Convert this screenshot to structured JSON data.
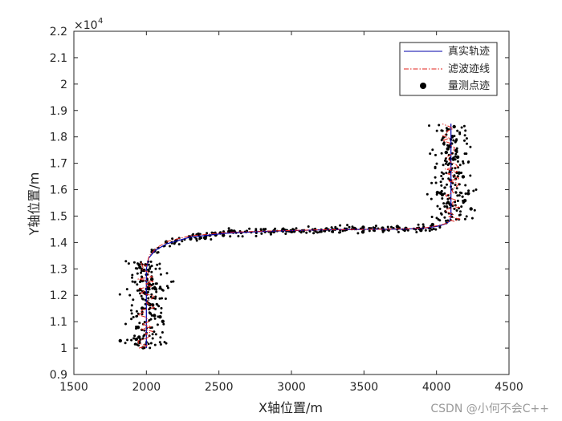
{
  "chart_data": {
    "type": "line",
    "xlabel": "X轴位置/m",
    "ylabel": "Y轴位置/m",
    "xlim": [
      1500,
      4500
    ],
    "ylim": [
      9000,
      22000
    ],
    "xticks": [
      1500,
      2000,
      2500,
      3000,
      3500,
      4000,
      4500
    ],
    "yticks": [
      9000,
      10000,
      11000,
      12000,
      13000,
      14000,
      15000,
      16000,
      17000,
      18000,
      19000,
      20000,
      21000,
      22000
    ],
    "xtick_labels": [
      "1500",
      "2000",
      "2500",
      "3000",
      "3500",
      "4000",
      "4500"
    ],
    "ytick_labels": [
      "0.9",
      "1",
      "1.1",
      "1.2",
      "1.3",
      "1.4",
      "1.5",
      "1.6",
      "1.7",
      "1.8",
      "1.9",
      "2",
      "2.1",
      "2.2"
    ],
    "y_exponent_label": "×10",
    "y_exponent_power": "4",
    "grid": false,
    "legend_position": "top-right",
    "legend": [
      "真实轨迹",
      "滤波迹线",
      "量测点迹"
    ],
    "colors": {
      "true": "#0000aa",
      "filter": "#e0201b",
      "measure": "#000000",
      "axis": "#262626"
    },
    "series": [
      {
        "name": "真实轨迹",
        "style": "solid",
        "x": [
          2000,
          2000,
          2015,
          2060,
          2140,
          2300,
          2550,
          2800,
          3200,
          3600,
          3800,
          3930,
          4010,
          4060,
          4090,
          4100,
          4100
        ],
        "y": [
          10000,
          13000,
          13400,
          13700,
          13950,
          14200,
          14350,
          14420,
          14480,
          14500,
          14510,
          14550,
          14620,
          14700,
          14800,
          15000,
          18500
        ]
      },
      {
        "name": "滤波迹线",
        "style": "dash-dot",
        "x": [
          2000,
          2000,
          2020,
          2070,
          2150,
          2300,
          2550,
          2800,
          3200,
          3600,
          3800,
          3930,
          4020,
          4070,
          4095,
          4105,
          4105
        ],
        "y": [
          10000,
          13100,
          13500,
          13800,
          14050,
          14250,
          14380,
          14430,
          14480,
          14500,
          14520,
          14560,
          14650,
          14730,
          14850,
          15000,
          18500
        ],
        "jitter_segments": [
          {
            "axis": "x",
            "center": 2000,
            "from": 10000,
            "to": 13300,
            "amplitude": 60
          },
          {
            "axis": "x",
            "center": 4100,
            "from": 14800,
            "to": 18500,
            "amplitude": 60
          }
        ]
      },
      {
        "name": "量测点迹",
        "style": "markers",
        "clusters": [
          {
            "x_center": 2000,
            "x_spread": 220,
            "y_from": 10000,
            "y_to": 13300,
            "count": 200
          },
          {
            "x_center": 4100,
            "x_spread": 220,
            "y_from": 14800,
            "y_to": 18500,
            "count": 200
          },
          {
            "follows": "真实轨迹",
            "x_from": 2000,
            "x_to": 4100,
            "y_spread": 150,
            "count": 230
          }
        ]
      }
    ]
  },
  "watermark": "CSDN @小何不会C++"
}
